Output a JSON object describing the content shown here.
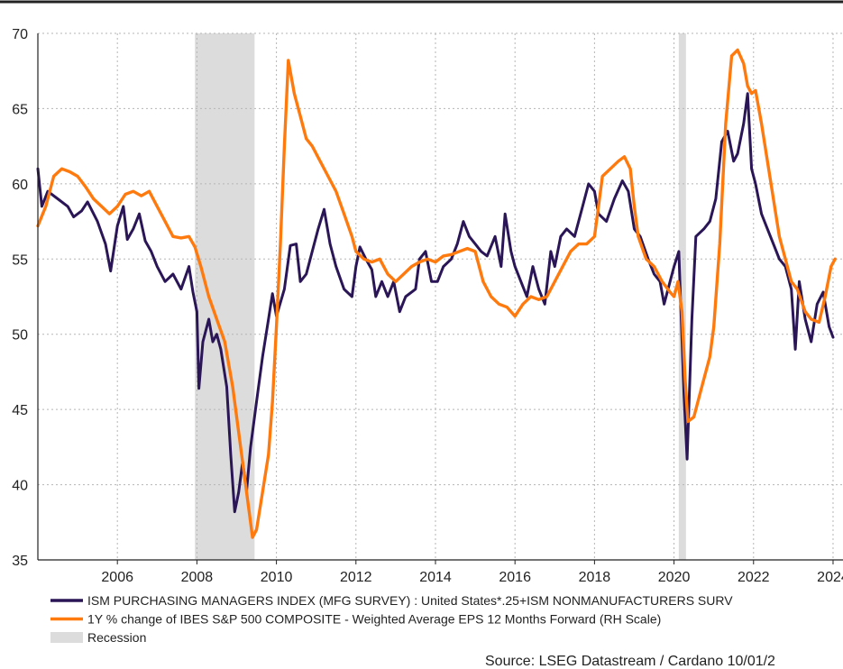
{
  "chart_data": {
    "type": "line",
    "title": "",
    "xlabel": "",
    "ylabel": "",
    "xlim": [
      2004.0,
      2024.25
    ],
    "ylim": [
      35,
      70
    ],
    "x_ticks": [
      "2006",
      "2008",
      "2010",
      "2012",
      "2014",
      "2016",
      "2018",
      "2020",
      "2022",
      "2024"
    ],
    "x_tick_values": [
      2006,
      2008,
      2010,
      2012,
      2014,
      2016,
      2018,
      2020,
      2022,
      2024
    ],
    "y_ticks": [
      "35",
      "40",
      "45",
      "50",
      "55",
      "60",
      "65",
      "70"
    ],
    "y_tick_values": [
      35,
      40,
      45,
      50,
      55,
      60,
      65,
      70
    ],
    "grid": true,
    "legend_position": "bottom",
    "recession_periods": [
      [
        2007.95,
        2009.45
      ],
      [
        2020.12,
        2020.3
      ]
    ],
    "series": [
      {
        "name": "ISM PURCHASING MANAGERS INDEX (MFG SURVEY) : United States*.25+ISM NONMANUFACTURERS SURV",
        "color": "#2a1656",
        "points": [
          [
            2004.0,
            61.0
          ],
          [
            2004.1,
            58.5
          ],
          [
            2004.25,
            59.5
          ],
          [
            2004.5,
            59.0
          ],
          [
            2004.75,
            58.5
          ],
          [
            2004.9,
            57.8
          ],
          [
            2005.1,
            58.2
          ],
          [
            2005.25,
            58.8
          ],
          [
            2005.5,
            57.5
          ],
          [
            2005.7,
            56.0
          ],
          [
            2005.83,
            54.2
          ],
          [
            2006.0,
            57.2
          ],
          [
            2006.15,
            58.5
          ],
          [
            2006.25,
            56.3
          ],
          [
            2006.4,
            57.0
          ],
          [
            2006.55,
            58.0
          ],
          [
            2006.7,
            56.2
          ],
          [
            2006.85,
            55.5
          ],
          [
            2007.0,
            54.5
          ],
          [
            2007.2,
            53.5
          ],
          [
            2007.4,
            54.0
          ],
          [
            2007.6,
            53.0
          ],
          [
            2007.8,
            54.5
          ],
          [
            2007.9,
            52.8
          ],
          [
            2008.0,
            51.5
          ],
          [
            2008.05,
            46.4
          ],
          [
            2008.15,
            49.5
          ],
          [
            2008.3,
            51.0
          ],
          [
            2008.4,
            49.5
          ],
          [
            2008.5,
            50.0
          ],
          [
            2008.6,
            49.0
          ],
          [
            2008.75,
            46.5
          ],
          [
            2008.85,
            42.0
          ],
          [
            2008.95,
            38.2
          ],
          [
            2009.05,
            39.5
          ],
          [
            2009.15,
            41.5
          ],
          [
            2009.25,
            39.6
          ],
          [
            2009.35,
            42.5
          ],
          [
            2009.5,
            45.5
          ],
          [
            2009.65,
            48.5
          ],
          [
            2009.8,
            51.0
          ],
          [
            2009.9,
            52.7
          ],
          [
            2010.0,
            51.2
          ],
          [
            2010.2,
            53.0
          ],
          [
            2010.35,
            55.9
          ],
          [
            2010.5,
            56.0
          ],
          [
            2010.6,
            53.5
          ],
          [
            2010.75,
            54.0
          ],
          [
            2010.9,
            55.5
          ],
          [
            2011.05,
            57.0
          ],
          [
            2011.2,
            58.3
          ],
          [
            2011.35,
            56.0
          ],
          [
            2011.5,
            54.5
          ],
          [
            2011.7,
            53.0
          ],
          [
            2011.9,
            52.5
          ],
          [
            2012.0,
            54.5
          ],
          [
            2012.1,
            55.8
          ],
          [
            2012.25,
            55.0
          ],
          [
            2012.4,
            54.3
          ],
          [
            2012.5,
            52.5
          ],
          [
            2012.65,
            53.5
          ],
          [
            2012.8,
            52.5
          ],
          [
            2012.95,
            53.5
          ],
          [
            2013.1,
            51.5
          ],
          [
            2013.25,
            52.5
          ],
          [
            2013.5,
            53.0
          ],
          [
            2013.6,
            55.0
          ],
          [
            2013.75,
            55.5
          ],
          [
            2013.9,
            53.5
          ],
          [
            2014.05,
            53.5
          ],
          [
            2014.2,
            54.5
          ],
          [
            2014.4,
            55.0
          ],
          [
            2014.55,
            56.0
          ],
          [
            2014.7,
            57.5
          ],
          [
            2014.85,
            56.5
          ],
          [
            2015.0,
            56.0
          ],
          [
            2015.15,
            55.5
          ],
          [
            2015.3,
            55.2
          ],
          [
            2015.5,
            56.5
          ],
          [
            2015.65,
            54.5
          ],
          [
            2015.75,
            58.0
          ],
          [
            2015.9,
            55.5
          ],
          [
            2016.0,
            54.5
          ],
          [
            2016.15,
            53.5
          ],
          [
            2016.3,
            52.5
          ],
          [
            2016.45,
            54.5
          ],
          [
            2016.6,
            53.0
          ],
          [
            2016.75,
            52.0
          ],
          [
            2016.9,
            55.5
          ],
          [
            2017.0,
            54.5
          ],
          [
            2017.15,
            56.5
          ],
          [
            2017.3,
            57.0
          ],
          [
            2017.5,
            56.5
          ],
          [
            2017.7,
            58.5
          ],
          [
            2017.85,
            60.0
          ],
          [
            2018.0,
            59.5
          ],
          [
            2018.1,
            58.0
          ],
          [
            2018.3,
            57.5
          ],
          [
            2018.5,
            59.0
          ],
          [
            2018.7,
            60.2
          ],
          [
            2018.85,
            59.5
          ],
          [
            2019.0,
            57.0
          ],
          [
            2019.15,
            56.5
          ],
          [
            2019.35,
            55.0
          ],
          [
            2019.5,
            54.0
          ],
          [
            2019.65,
            53.5
          ],
          [
            2019.75,
            52.0
          ],
          [
            2019.9,
            53.5
          ],
          [
            2020.0,
            54.5
          ],
          [
            2020.12,
            55.5
          ],
          [
            2020.25,
            46.0
          ],
          [
            2020.33,
            41.7
          ],
          [
            2020.45,
            51.0
          ],
          [
            2020.55,
            56.5
          ],
          [
            2020.75,
            57.0
          ],
          [
            2020.9,
            57.5
          ],
          [
            2021.05,
            59.0
          ],
          [
            2021.2,
            62.8
          ],
          [
            2021.35,
            63.5
          ],
          [
            2021.5,
            61.5
          ],
          [
            2021.6,
            62.0
          ],
          [
            2021.75,
            64.0
          ],
          [
            2021.85,
            66.0
          ],
          [
            2021.95,
            61.0
          ],
          [
            2022.05,
            60.0
          ],
          [
            2022.2,
            58.0
          ],
          [
            2022.35,
            57.0
          ],
          [
            2022.5,
            56.0
          ],
          [
            2022.65,
            55.0
          ],
          [
            2022.8,
            54.5
          ],
          [
            2022.95,
            53.0
          ],
          [
            2023.05,
            49.0
          ],
          [
            2023.15,
            53.5
          ],
          [
            2023.3,
            51.0
          ],
          [
            2023.45,
            49.5
          ],
          [
            2023.6,
            52.0
          ],
          [
            2023.75,
            52.8
          ],
          [
            2023.9,
            50.5
          ],
          [
            2024.0,
            49.8
          ]
        ]
      },
      {
        "name": "1Y % change of IBES S&P 500 COMPOSITE - Weighted Average EPS 12 Months Forward (RH Scale)",
        "color": "#ff7a0e",
        "points": [
          [
            2004.0,
            57.2
          ],
          [
            2004.2,
            58.5
          ],
          [
            2004.4,
            60.5
          ],
          [
            2004.6,
            61.0
          ],
          [
            2004.8,
            60.8
          ],
          [
            2005.0,
            60.5
          ],
          [
            2005.2,
            59.8
          ],
          [
            2005.4,
            59.0
          ],
          [
            2005.6,
            58.5
          ],
          [
            2005.8,
            58.0
          ],
          [
            2006.0,
            58.5
          ],
          [
            2006.2,
            59.3
          ],
          [
            2006.4,
            59.5
          ],
          [
            2006.6,
            59.2
          ],
          [
            2006.8,
            59.5
          ],
          [
            2007.0,
            58.5
          ],
          [
            2007.2,
            57.5
          ],
          [
            2007.4,
            56.5
          ],
          [
            2007.6,
            56.4
          ],
          [
            2007.8,
            56.5
          ],
          [
            2007.95,
            55.8
          ],
          [
            2008.1,
            54.5
          ],
          [
            2008.3,
            52.5
          ],
          [
            2008.5,
            51.0
          ],
          [
            2008.7,
            49.5
          ],
          [
            2008.9,
            46.5
          ],
          [
            2009.05,
            43.5
          ],
          [
            2009.2,
            40.5
          ],
          [
            2009.3,
            38.5
          ],
          [
            2009.4,
            36.5
          ],
          [
            2009.5,
            37.0
          ],
          [
            2009.65,
            39.5
          ],
          [
            2009.8,
            42.0
          ],
          [
            2009.9,
            45.5
          ],
          [
            2010.0,
            50.5
          ],
          [
            2010.1,
            56.0
          ],
          [
            2010.2,
            62.5
          ],
          [
            2010.3,
            68.2
          ],
          [
            2010.45,
            66.0
          ],
          [
            2010.6,
            64.5
          ],
          [
            2010.75,
            63.0
          ],
          [
            2010.9,
            62.5
          ],
          [
            2011.1,
            61.5
          ],
          [
            2011.3,
            60.5
          ],
          [
            2011.5,
            59.5
          ],
          [
            2011.7,
            58.0
          ],
          [
            2011.9,
            56.5
          ],
          [
            2012.0,
            55.5
          ],
          [
            2012.2,
            55.0
          ],
          [
            2012.4,
            54.8
          ],
          [
            2012.6,
            55.0
          ],
          [
            2012.8,
            54.0
          ],
          [
            2013.0,
            53.5
          ],
          [
            2013.2,
            54.0
          ],
          [
            2013.4,
            54.5
          ],
          [
            2013.6,
            54.8
          ],
          [
            2013.8,
            55.0
          ],
          [
            2014.0,
            54.8
          ],
          [
            2014.2,
            55.2
          ],
          [
            2014.4,
            55.3
          ],
          [
            2014.6,
            55.5
          ],
          [
            2014.8,
            55.7
          ],
          [
            2015.0,
            55.5
          ],
          [
            2015.2,
            53.5
          ],
          [
            2015.4,
            52.5
          ],
          [
            2015.6,
            52.0
          ],
          [
            2015.8,
            51.8
          ],
          [
            2016.0,
            51.2
          ],
          [
            2016.2,
            52.0
          ],
          [
            2016.4,
            52.5
          ],
          [
            2016.6,
            52.3
          ],
          [
            2016.8,
            52.5
          ],
          [
            2017.0,
            53.5
          ],
          [
            2017.2,
            54.5
          ],
          [
            2017.4,
            55.5
          ],
          [
            2017.6,
            56.0
          ],
          [
            2017.8,
            56.0
          ],
          [
            2018.0,
            56.5
          ],
          [
            2018.2,
            60.5
          ],
          [
            2018.4,
            61.0
          ],
          [
            2018.6,
            61.5
          ],
          [
            2018.75,
            61.8
          ],
          [
            2018.9,
            61.0
          ],
          [
            2019.0,
            58.5
          ],
          [
            2019.1,
            56.5
          ],
          [
            2019.3,
            55.0
          ],
          [
            2019.5,
            54.5
          ],
          [
            2019.7,
            53.5
          ],
          [
            2019.9,
            52.8
          ],
          [
            2020.0,
            52.5
          ],
          [
            2020.1,
            53.5
          ],
          [
            2020.2,
            51.5
          ],
          [
            2020.28,
            47.0
          ],
          [
            2020.35,
            44.2
          ],
          [
            2020.5,
            44.5
          ],
          [
            2020.7,
            46.5
          ],
          [
            2020.9,
            48.5
          ],
          [
            2021.0,
            50.5
          ],
          [
            2021.15,
            56.0
          ],
          [
            2021.3,
            64.0
          ],
          [
            2021.45,
            68.5
          ],
          [
            2021.6,
            68.9
          ],
          [
            2021.75,
            68.0
          ],
          [
            2021.85,
            66.5
          ],
          [
            2021.95,
            66.0
          ],
          [
            2022.05,
            66.2
          ],
          [
            2022.2,
            64.0
          ],
          [
            2022.35,
            61.5
          ],
          [
            2022.5,
            59.0
          ],
          [
            2022.65,
            56.5
          ],
          [
            2022.8,
            55.0
          ],
          [
            2022.95,
            53.5
          ],
          [
            2023.1,
            53.0
          ],
          [
            2023.3,
            51.5
          ],
          [
            2023.45,
            51.0
          ],
          [
            2023.65,
            50.8
          ],
          [
            2023.8,
            52.5
          ],
          [
            2023.95,
            54.5
          ],
          [
            2024.05,
            55.0
          ]
        ]
      }
    ],
    "legend": [
      {
        "label": "ISM PURCHASING MANAGERS INDEX (MFG SURVEY) : United States*.25+ISM NONMANUFACTURERS SURV",
        "color": "#2a1656",
        "kind": "line"
      },
      {
        "label": "1Y % change of IBES S&P 500 COMPOSITE - Weighted Average EPS 12 Months Forward (RH Scale)",
        "color": "#ff7a0e",
        "kind": "line"
      },
      {
        "label": "Recession",
        "color": "#dcdcdc",
        "kind": "box"
      }
    ],
    "source": "Source: LSEG Datastream / Cardano  10/01/2"
  },
  "colors": {
    "grid": "#b5b5b5",
    "recession_fill": "#dcdcdc",
    "axis": "#222222",
    "top_rule": "#222222"
  }
}
